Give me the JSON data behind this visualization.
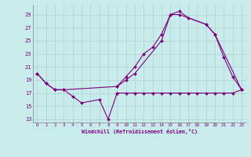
{
  "xlabel": "Windchill (Refroidissement éolien,°C)",
  "bg_color": "#c8ecec",
  "grid_color": "#b0d0d0",
  "line_color": "#800080",
  "xlim": [
    -0.5,
    23.5
  ],
  "ylim": [
    12.5,
    30.5
  ],
  "yticks": [
    13,
    15,
    17,
    19,
    21,
    23,
    25,
    27,
    29
  ],
  "xticks": [
    0,
    1,
    2,
    3,
    4,
    5,
    6,
    7,
    8,
    9,
    10,
    11,
    12,
    13,
    14,
    15,
    16,
    17,
    18,
    19,
    20,
    21,
    22,
    23
  ],
  "line1": {
    "x": [
      0,
      1,
      2,
      3,
      4,
      5,
      7,
      8,
      9
    ],
    "y": [
      20,
      18.5,
      17.5,
      17.5,
      16.5,
      15.5,
      16,
      13,
      17
    ]
  },
  "line2": {
    "x": [
      0,
      1,
      2,
      3,
      9,
      10,
      11,
      14,
      15,
      16,
      17,
      19,
      20,
      21,
      22,
      23
    ],
    "y": [
      20,
      18.5,
      17.5,
      17.5,
      18,
      19,
      20,
      25,
      29,
      29.5,
      28.5,
      27.5,
      26,
      22.5,
      19.5,
      17.5
    ]
  },
  "line3": {
    "x": [
      9,
      10,
      11,
      12,
      13,
      14,
      15,
      16,
      19,
      20,
      23
    ],
    "y": [
      18,
      19.5,
      21,
      23,
      24,
      26,
      29,
      29,
      27.5,
      26,
      17.5
    ]
  },
  "hline": {
    "x": [
      9,
      10,
      11,
      12,
      13,
      14,
      15,
      16,
      17,
      18,
      19,
      20,
      21,
      22,
      23
    ],
    "y": [
      17,
      17,
      17,
      17,
      17,
      17,
      17,
      17,
      17,
      17,
      17,
      17,
      17,
      17,
      17.5
    ]
  }
}
